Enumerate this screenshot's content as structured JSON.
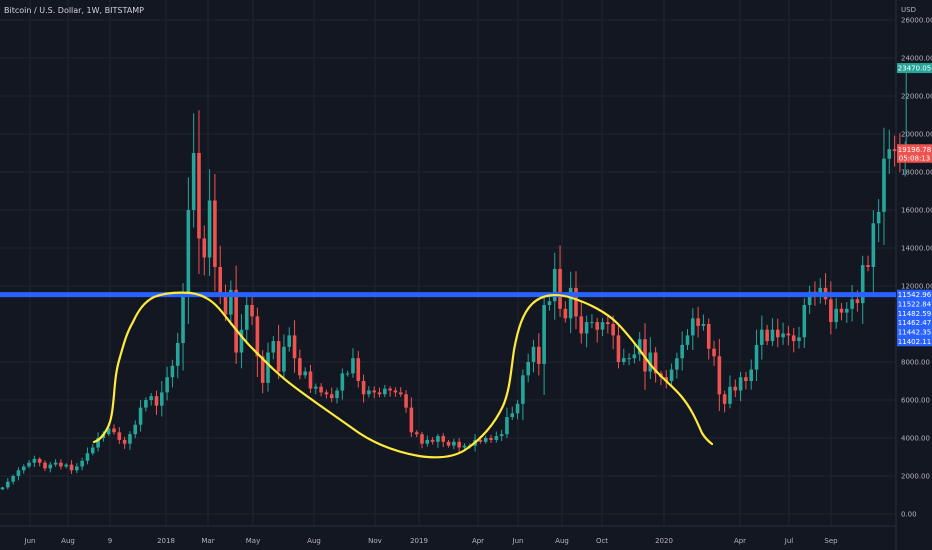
{
  "header": {
    "title": "Bitcoin / U.S. Dollar, 1W, BITSTAMP",
    "currency": "USD"
  },
  "colors": {
    "background": "#131722",
    "grid": "#1f2430",
    "up": "#26a69a",
    "down": "#ef5350",
    "level_line": "#2962ff",
    "drawing": "#ffeb3b",
    "axis_text": "#b2b5be"
  },
  "chart_data": {
    "type": "candlestick",
    "symbol": "BTC/USD",
    "interval": "1W",
    "exchange": "BITSTAMP",
    "ylim": [
      0,
      28000
    ],
    "y_ticks": [
      "26000.00",
      "24000.00",
      "22000.00",
      "20000.00",
      "18000.00",
      "16000.00",
      "14000.00",
      "12000.00",
      "8000.00",
      "6000.00",
      "4000.00",
      "2000.00",
      "0.00"
    ],
    "x_ticks": [
      "Jun",
      "Aug",
      "9",
      "2018",
      "Mar",
      "May",
      "Aug",
      "Nov",
      "2019",
      "Apr",
      "Jun",
      "Aug",
      "Oct",
      "2020",
      "Apr",
      "Jul",
      "Sep"
    ],
    "x_start": "2017-05-01",
    "interval_days": 7,
    "horizontal_level": 11542.96,
    "price_badges": [
      {
        "label": "23470.05",
        "value": 23470.05,
        "color": "#26a69a"
      },
      {
        "label": "19196.78",
        "value": 19196.78,
        "color": "#ef5350"
      },
      {
        "label": "05:08:13",
        "value": 18750,
        "color": "#ef5350"
      },
      {
        "label": "11542.96",
        "value": 11542.96,
        "color": "#2962ff"
      },
      {
        "label": "11522.84",
        "value": 11050,
        "color": "#2962ff"
      },
      {
        "label": "11482.59",
        "value": 10560,
        "color": "#2962ff"
      },
      {
        "label": "11462.47",
        "value": 10070,
        "color": "#2962ff"
      },
      {
        "label": "11442.35",
        "value": 9580,
        "color": "#2962ff"
      },
      {
        "label": "11402.11",
        "value": 9090,
        "color": "#2962ff"
      }
    ],
    "close": [
      1400,
      1700,
      2000,
      2300,
      2500,
      2700,
      2900,
      2700,
      2400,
      2600,
      2700,
      2500,
      2600,
      2300,
      2500,
      2800,
      3200,
      3500,
      4000,
      4200,
      4500,
      4300,
      3900,
      3700,
      4200,
      4700,
      5600,
      6000,
      6200,
      5700,
      6400,
      7200,
      7800,
      9000,
      11500,
      16000,
      19000,
      14500,
      13500,
      16500,
      13000,
      11500,
      10500,
      11800,
      8500,
      9700,
      11000,
      10400,
      8300,
      6900,
      8500,
      9100,
      7500,
      8800,
      9400,
      8200,
      7300,
      7500,
      6600,
      6700,
      6400,
      6300,
      6100,
      6500,
      7400,
      7400,
      8200,
      7000,
      6300,
      6500,
      6400,
      6300,
      6600,
      6500,
      6400,
      6300,
      5600,
      4300,
      4200,
      3700,
      3900,
      3800,
      4100,
      3800,
      3600,
      3800,
      3500,
      3600,
      3600,
      3900,
      3800,
      4000,
      3900,
      4100,
      4200,
      5100,
      5300,
      5800,
      7300,
      8000,
      8800,
      7900,
      11000,
      11200,
      12900,
      10800,
      10300,
      11900,
      10400,
      9500,
      10100,
      10100,
      9700,
      10100,
      10000,
      9400,
      8000,
      8200,
      8200,
      8400,
      9200,
      7500,
      8500,
      7400,
      7200,
      7000,
      7600,
      8200,
      8900,
      9400,
      10300,
      9900,
      10000,
      8700,
      8300,
      6300,
      5800,
      6700,
      6500,
      7200,
      7000,
      7600,
      8900,
      9700,
      9100,
      9700,
      9300,
      9500,
      9400,
      9100,
      9300,
      11000,
      11700,
      11600,
      11900,
      11300,
      10100,
      10800,
      10600,
      10800,
      11300,
      11100,
      13100,
      13000,
      15300,
      15900,
      18700,
      19200,
      19100,
      18500,
      19200
    ]
  }
}
